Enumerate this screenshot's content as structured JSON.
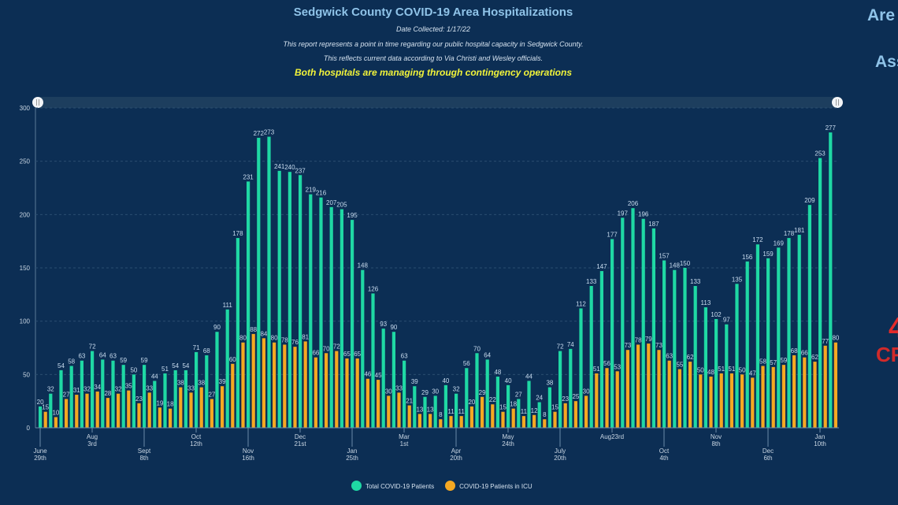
{
  "header": {
    "title": "Sedgwick County COVID-19 Area Hospitalizations",
    "date_collected": "Date Collected: 1/17/22",
    "note1": "This report represents a point in time regarding our public hospital capacity in Sedgwick County.",
    "note2": "This reflects current data according to Via Christi and Wesley officials.",
    "status": "Both hospitals are managing through contingency operations"
  },
  "side_panel": {
    "line1": "Are",
    "line2": "Ass",
    "line3": "4",
    "line4": "CR"
  },
  "colors": {
    "total": "#1fd8a4",
    "icu": "#f5a822",
    "background": "#0c2e54",
    "range_slider": "#1d3e5e"
  },
  "chart_data": {
    "type": "bar",
    "title": "Sedgwick County COVID-19 Area Hospitalizations",
    "xlabel": "",
    "ylabel": "",
    "ylim": [
      0,
      300
    ],
    "yticks": [
      0,
      50,
      100,
      150,
      200,
      250,
      300
    ],
    "grid": true,
    "legend": "bottom",
    "data_labels": true,
    "x_tick_labels": [
      {
        "index": 0,
        "line1": "June",
        "line2": "29th"
      },
      {
        "index": 5,
        "line1": "Aug",
        "line2": "3rd"
      },
      {
        "index": 10,
        "line1": "Sept",
        "line2": "8th"
      },
      {
        "index": 15,
        "line1": "Oct",
        "line2": "12th"
      },
      {
        "index": 20,
        "line1": "Nov",
        "line2": "16th"
      },
      {
        "index": 25,
        "line1": "Dec",
        "line2": "21st"
      },
      {
        "index": 30,
        "line1": "Jan",
        "line2": "25th"
      },
      {
        "index": 35,
        "line1": "Mar",
        "line2": "1st"
      },
      {
        "index": 40,
        "line1": "Apr",
        "line2": "20th"
      },
      {
        "index": 45,
        "line1": "May",
        "line2": "24th"
      },
      {
        "index": 50,
        "line1": "July",
        "line2": "20th"
      },
      {
        "index": 55,
        "line1": "Aug23rd",
        "line2": ""
      },
      {
        "index": 60,
        "line1": "Oct",
        "line2": "4th"
      },
      {
        "index": 65,
        "line1": "Nov",
        "line2": "8th"
      },
      {
        "index": 70,
        "line1": "Dec",
        "line2": "6th"
      },
      {
        "index": 75,
        "line1": "Jan",
        "line2": "10th"
      }
    ],
    "series": [
      {
        "name": "Total COVID-19 Patients",
        "values": [
          20,
          32,
          54,
          58,
          63,
          72,
          64,
          63,
          59,
          50,
          59,
          44,
          51,
          54,
          54,
          71,
          68,
          90,
          111,
          178,
          231,
          272,
          273,
          241,
          240,
          237,
          219,
          216,
          207,
          205,
          195,
          148,
          126,
          93,
          90,
          63,
          39,
          29,
          30,
          40,
          32,
          56,
          70,
          64,
          48,
          40,
          27,
          44,
          24,
          38,
          72,
          74,
          112,
          133,
          147,
          177,
          197,
          206,
          196,
          187,
          157,
          148,
          150,
          133,
          113,
          102,
          97,
          135,
          156,
          172,
          159,
          169,
          178,
          181,
          209,
          253,
          277
        ]
      },
      {
        "name": "COVID-19 Patients in ICU",
        "values": [
          15,
          10,
          27,
          31,
          32,
          34,
          28,
          32,
          35,
          23,
          33,
          19,
          18,
          38,
          33,
          38,
          27,
          39,
          60,
          80,
          88,
          84,
          80,
          78,
          76,
          81,
          66,
          70,
          72,
          65,
          65,
          46,
          45,
          30,
          33,
          21,
          13,
          13,
          8,
          11,
          11,
          20,
          29,
          22,
          15,
          18,
          11,
          12,
          8,
          15,
          23,
          25,
          30,
          51,
          56,
          53,
          73,
          78,
          79,
          73,
          63,
          55,
          62,
          50,
          48,
          51,
          51,
          50,
          47,
          58,
          57,
          59,
          68,
          66,
          62,
          77,
          80
        ]
      }
    ]
  }
}
